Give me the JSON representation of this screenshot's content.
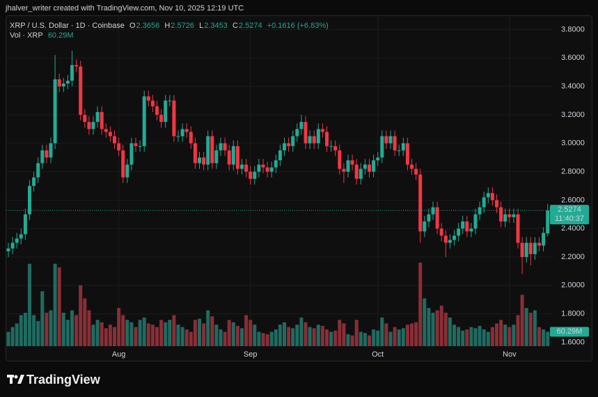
{
  "header": {
    "attribution": "jhalver_writer created with TradingView.com, Nov 10, 2025 12:19 UTC"
  },
  "chart_data": {
    "type": "candlestick",
    "title": "XRP / U.S. Dollar · 1D · Coinbase",
    "ohlc_labels": [
      "O",
      "H",
      "L",
      "C"
    ],
    "change": "+0.1616 (+6.83%)",
    "countdown": "11:40:37",
    "categories": [
      null,
      null,
      null,
      null,
      null,
      null,
      null,
      null,
      null,
      null,
      null,
      null,
      null,
      null,
      null,
      null,
      null,
      null,
      null,
      null,
      null,
      null,
      null,
      null,
      null,
      null,
      "Aug",
      null,
      null,
      null,
      null,
      null,
      null,
      null,
      null,
      null,
      null,
      null,
      null,
      null,
      null,
      null,
      null,
      null,
      null,
      null,
      null,
      null,
      null,
      null,
      null,
      null,
      null,
      null,
      null,
      null,
      null,
      "Sep",
      null,
      null,
      null,
      null,
      null,
      null,
      null,
      null,
      null,
      null,
      null,
      null,
      null,
      null,
      null,
      null,
      null,
      null,
      null,
      null,
      null,
      null,
      null,
      null,
      null,
      null,
      null,
      null,
      null,
      "Oct",
      null,
      null,
      null,
      null,
      null,
      null,
      null,
      null,
      null,
      null,
      null,
      null,
      null,
      null,
      null,
      null,
      null,
      null,
      null,
      null,
      null,
      null,
      null,
      null,
      null,
      null,
      null,
      null,
      null,
      null,
      "Nov",
      null,
      null,
      null,
      null,
      null,
      null,
      null,
      null,
      null
    ],
    "open": [
      2.24,
      2.26,
      2.3,
      2.33,
      2.36,
      2.5,
      2.7,
      2.76,
      2.86,
      2.95,
      2.9,
      3.0,
      3.45,
      3.4,
      3.42,
      3.44,
      3.55,
      3.54,
      3.2,
      3.15,
      3.1,
      3.15,
      3.22,
      3.1,
      3.08,
      3.05,
      3.0,
      2.95,
      2.76,
      2.85,
      3.0,
      2.98,
      2.98,
      3.33,
      3.3,
      3.26,
      3.2,
      3.15,
      3.3,
      3.3,
      3.05,
      3.05,
      3.1,
      3.08,
      3.0,
      2.86,
      2.9,
      2.85,
      3.05,
      2.86,
      2.95,
      3.0,
      2.95,
      2.85,
      2.98,
      2.82,
      2.85,
      2.8,
      2.75,
      2.8,
      2.85,
      2.83,
      2.8,
      2.83,
      2.88,
      2.95,
      3.0,
      2.98,
      3.05,
      3.1,
      3.15,
      3.0,
      3.05,
      3.0,
      3.1,
      3.08,
      2.98,
      2.98,
      2.95,
      2.82,
      2.8,
      2.88,
      2.85,
      2.75,
      2.82,
      2.85,
      2.8,
      2.88,
      2.9,
      3.05,
      3.0,
      3.05,
      2.95,
      2.95,
      3.0,
      2.85,
      2.82,
      2.78,
      2.38,
      2.45,
      2.5,
      2.55,
      2.4,
      2.35,
      2.3,
      2.32,
      2.35,
      2.4,
      2.45,
      2.38,
      2.4,
      2.5,
      2.55,
      2.62,
      2.65,
      2.6,
      2.55,
      2.45,
      2.5,
      2.48,
      2.5,
      2.3,
      2.2,
      2.3,
      2.22,
      2.3,
      2.28,
      2.3656
    ],
    "high": [
      2.3,
      2.34,
      2.37,
      2.4,
      2.54,
      2.74,
      2.8,
      2.9,
      2.99,
      2.99,
      3.04,
      3.62,
      3.49,
      3.46,
      3.48,
      3.65,
      3.59,
      3.58,
      3.24,
      3.19,
      3.19,
      3.26,
      3.26,
      3.14,
      3.12,
      3.09,
      3.04,
      2.99,
      2.89,
      3.04,
      3.04,
      3.02,
      3.37,
      3.37,
      3.34,
      3.3,
      3.24,
      3.34,
      3.34,
      3.34,
      3.09,
      3.14,
      3.14,
      3.12,
      3.04,
      2.94,
      2.94,
      3.09,
      3.09,
      2.99,
      3.04,
      3.04,
      2.99,
      3.02,
      3.02,
      2.89,
      2.89,
      2.84,
      2.84,
      2.89,
      2.89,
      2.87,
      2.87,
      2.92,
      2.99,
      3.04,
      3.04,
      3.09,
      3.14,
      3.2,
      3.19,
      3.09,
      3.09,
      3.14,
      3.14,
      3.12,
      3.02,
      3.02,
      2.99,
      2.86,
      2.92,
      2.92,
      2.89,
      2.86,
      2.89,
      2.89,
      2.92,
      2.94,
      3.09,
      3.09,
      3.09,
      3.09,
      2.99,
      3.04,
      3.04,
      2.89,
      2.86,
      2.82,
      2.49,
      2.54,
      2.59,
      2.59,
      2.44,
      2.39,
      2.36,
      2.39,
      2.44,
      2.49,
      2.49,
      2.44,
      2.54,
      2.59,
      2.66,
      2.69,
      2.69,
      2.64,
      2.59,
      2.54,
      2.54,
      2.54,
      2.54,
      2.34,
      2.34,
      2.34,
      2.34,
      2.34,
      2.41,
      2.5726
    ],
    "low": [
      2.2,
      2.22,
      2.26,
      2.29,
      2.32,
      2.46,
      2.66,
      2.72,
      2.82,
      2.86,
      2.86,
      2.96,
      3.36,
      3.36,
      3.38,
      3.4,
      3.5,
      3.16,
      3.11,
      3.06,
      3.06,
      3.11,
      3.06,
      3.04,
      3.01,
      2.96,
      2.91,
      2.72,
      2.72,
      2.81,
      2.94,
      2.94,
      2.94,
      3.26,
      3.22,
      3.16,
      3.11,
      3.11,
      3.26,
      3.01,
      3.01,
      3.01,
      3.04,
      2.96,
      2.82,
      2.82,
      2.81,
      2.81,
      2.82,
      2.82,
      2.91,
      2.91,
      2.81,
      2.81,
      2.78,
      2.78,
      2.76,
      2.71,
      2.71,
      2.76,
      2.79,
      2.76,
      2.76,
      2.79,
      2.84,
      2.91,
      2.94,
      2.94,
      3.01,
      3.06,
      2.96,
      2.96,
      2.96,
      2.96,
      3.04,
      2.94,
      2.94,
      2.91,
      2.78,
      2.72,
      2.76,
      2.81,
      2.71,
      2.71,
      2.78,
      2.76,
      2.76,
      2.84,
      2.86,
      2.96,
      2.96,
      2.91,
      2.91,
      2.91,
      2.81,
      2.78,
      2.74,
      2.3,
      2.34,
      2.41,
      2.46,
      2.36,
      2.31,
      2.2,
      2.26,
      2.28,
      2.31,
      2.36,
      2.34,
      2.34,
      2.36,
      2.46,
      2.51,
      2.58,
      2.56,
      2.51,
      2.41,
      2.41,
      2.44,
      2.44,
      2.26,
      2.08,
      2.16,
      2.14,
      2.18,
      2.24,
      2.24,
      2.3453
    ],
    "close": [
      2.26,
      2.3,
      2.33,
      2.36,
      2.5,
      2.7,
      2.76,
      2.86,
      2.95,
      2.9,
      3.0,
      3.45,
      3.4,
      3.42,
      3.44,
      3.55,
      3.54,
      3.2,
      3.15,
      3.1,
      3.15,
      3.22,
      3.1,
      3.08,
      3.05,
      3.0,
      2.95,
      2.76,
      2.85,
      3.0,
      2.98,
      2.98,
      3.33,
      3.3,
      3.26,
      3.2,
      3.15,
      3.3,
      3.3,
      3.05,
      3.05,
      3.1,
      3.08,
      3.0,
      2.86,
      2.9,
      2.85,
      3.05,
      2.86,
      2.95,
      3.0,
      2.95,
      2.85,
      2.98,
      2.82,
      2.85,
      2.8,
      2.75,
      2.8,
      2.85,
      2.83,
      2.8,
      2.83,
      2.88,
      2.95,
      3.0,
      2.98,
      3.05,
      3.1,
      3.15,
      3.0,
      3.05,
      3.0,
      3.1,
      3.08,
      2.98,
      2.98,
      2.95,
      2.82,
      2.8,
      2.88,
      2.85,
      2.75,
      2.82,
      2.85,
      2.8,
      2.88,
      2.9,
      3.05,
      3.0,
      3.05,
      2.95,
      2.95,
      3.0,
      2.85,
      2.82,
      2.78,
      2.38,
      2.45,
      2.5,
      2.55,
      2.4,
      2.35,
      2.3,
      2.32,
      2.35,
      2.4,
      2.45,
      2.38,
      2.4,
      2.5,
      2.55,
      2.62,
      2.65,
      2.6,
      2.55,
      2.45,
      2.5,
      2.48,
      2.5,
      2.3,
      2.2,
      2.3,
      2.22,
      2.3,
      2.28,
      2.37,
      2.5274
    ],
    "up_color": "#22ab94",
    "down_color": "#f23645",
    "volume": {
      "name": "Vol · XRP",
      "last_label": "60.29M",
      "up_color": "#1f6b61",
      "down_color": "#8a2e36",
      "values": [
        60,
        80,
        95,
        130,
        140,
        345,
        130,
        105,
        230,
        140,
        150,
        345,
        330,
        140,
        110,
        150,
        130,
        255,
        200,
        150,
        90,
        110,
        100,
        75,
        90,
        80,
        160,
        130,
        110,
        100,
        80,
        110,
        120,
        95,
        90,
        80,
        110,
        100,
        110,
        130,
        90,
        80,
        70,
        60,
        110,
        115,
        95,
        150,
        125,
        90,
        70,
        60,
        110,
        100,
        85,
        75,
        130,
        110,
        90,
        60,
        55,
        50,
        60,
        70,
        90,
        100,
        80,
        75,
        90,
        120,
        100,
        80,
        75,
        90,
        85,
        70,
        60,
        65,
        110,
        95,
        50,
        45,
        110,
        60,
        55,
        45,
        70,
        65,
        120,
        95,
        60,
        80,
        70,
        75,
        90,
        95,
        100,
        350,
        200,
        160,
        140,
        150,
        170,
        140,
        120,
        90,
        80,
        65,
        70,
        80,
        75,
        85,
        70,
        60,
        80,
        95,
        110,
        90,
        80,
        90,
        130,
        215,
        160,
        140,
        150,
        80,
        70,
        60.29
      ]
    },
    "ylim": [
      1.47,
      3.9
    ],
    "yticks": [
      {
        "value": 1.6,
        "label": "1.6000"
      },
      {
        "value": 1.8,
        "label": "1.8000"
      },
      {
        "value": 2.0,
        "label": "2.0000"
      },
      {
        "value": 2.2,
        "label": "2.2000"
      },
      {
        "value": 2.4,
        "label": "2.4000"
      },
      {
        "value": 2.6,
        "label": "2.6000"
      },
      {
        "value": 2.8,
        "label": "2.8000"
      },
      {
        "value": 3.0,
        "label": "3.0000"
      },
      {
        "value": 3.2,
        "label": "3.2000"
      },
      {
        "value": 3.4,
        "label": "3.4000"
      },
      {
        "value": 3.6,
        "label": "3.6000"
      },
      {
        "value": 3.8,
        "label": "3.8000"
      }
    ],
    "grid": true
  },
  "footer": {
    "logo": "TradingView"
  }
}
